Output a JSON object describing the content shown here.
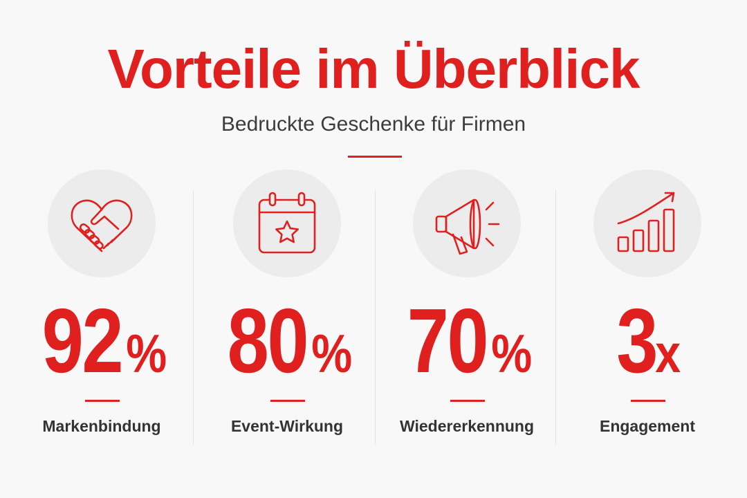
{
  "header": {
    "title": "Vorteile im Überblick",
    "subtitle": "Bedruckte Geschenke für Firmen"
  },
  "colors": {
    "accent": "#e01f1f",
    "text": "#333333",
    "icon_background": "#ececec",
    "page_background": "#f8f8f8"
  },
  "stats": [
    {
      "icon": "handshake-heart-icon",
      "number": "92",
      "unit": "%",
      "label": "Markenbindung"
    },
    {
      "icon": "calendar-star-icon",
      "number": "80",
      "unit": "%",
      "label": "Event-Wirkung"
    },
    {
      "icon": "megaphone-icon",
      "number": "70",
      "unit": "%",
      "label": "Wiedererkennung"
    },
    {
      "icon": "growth-chart-icon",
      "number": "3",
      "unit": "x",
      "label": "Engagement"
    }
  ]
}
